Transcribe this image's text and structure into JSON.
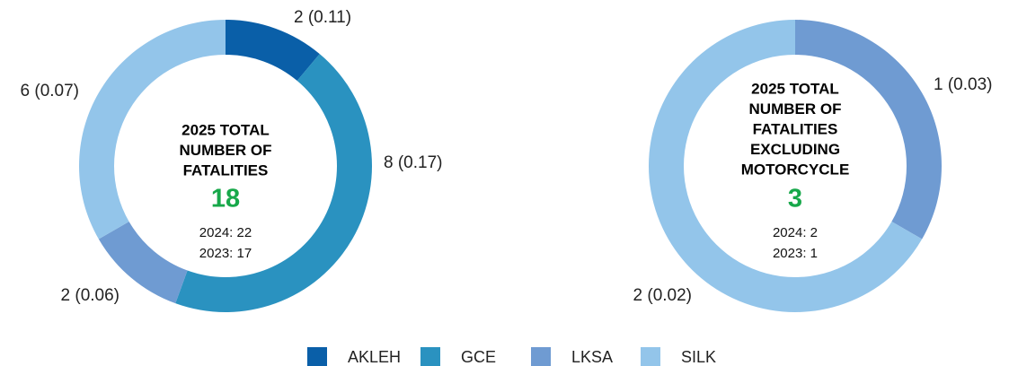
{
  "legend": {
    "items": [
      {
        "name": "AKLEH",
        "color": "#0a5fa8"
      },
      {
        "name": "GCE",
        "color": "#2a92c0"
      },
      {
        "name": "LKSA",
        "color": "#6f9bd2"
      },
      {
        "name": "SILK",
        "color": "#93c5ea"
      }
    ]
  },
  "chart_data": [
    {
      "type": "pie",
      "title": [
        "2025 TOTAL",
        "NUMBER OF",
        "FATALITIES"
      ],
      "total": "18",
      "prior": [
        "2024: 22",
        "2023: 17"
      ],
      "values": [
        2,
        8,
        2,
        6
      ],
      "value_labels": [
        "2 (0.11)",
        "8 (0.17)",
        "2 (0.06)",
        "6 (0.07)"
      ]
    },
    {
      "type": "pie",
      "title": [
        "2025 TOTAL",
        "NUMBER OF",
        "FATALITIES",
        "EXCLUDING",
        "MOTORCYCLE"
      ],
      "total": "3",
      "prior": [
        "2024: 2",
        "2023: 1"
      ],
      "values": [
        null,
        null,
        1,
        2
      ],
      "value_labels": [
        null,
        null,
        "1 (0.03)",
        "2 (0.02)"
      ]
    }
  ]
}
